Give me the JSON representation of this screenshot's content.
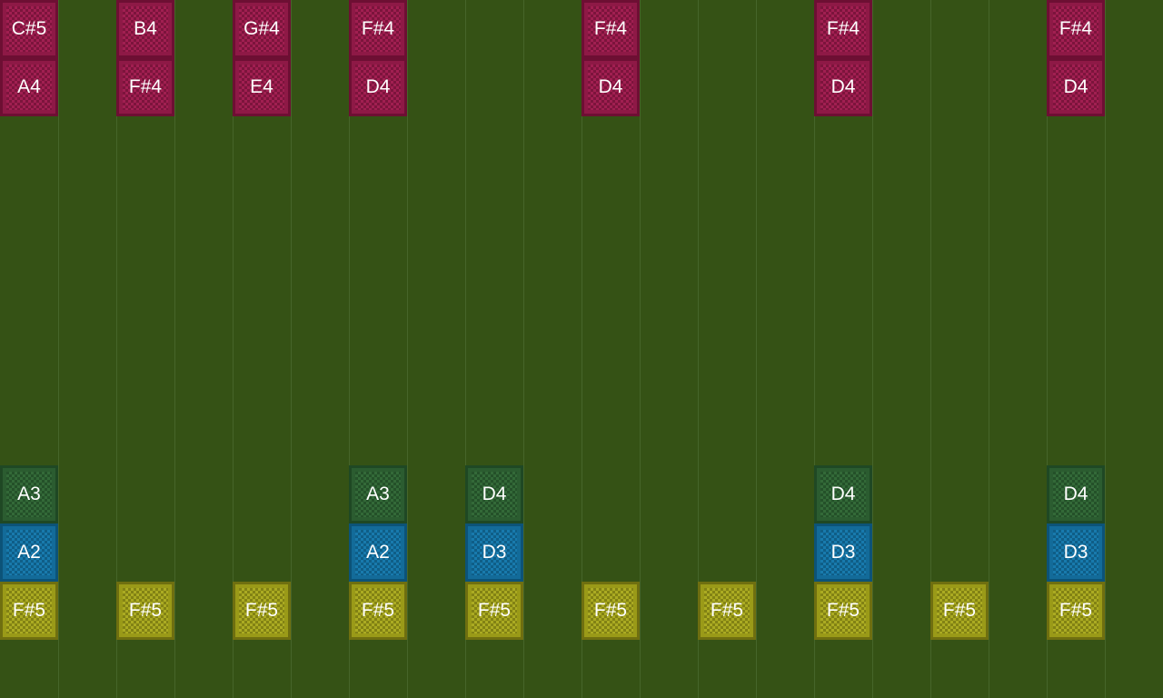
{
  "colors": {
    "background": "#355215",
    "gridline": "#46652a",
    "melody": {
      "base": "#8e1946",
      "dark": "#6d0f33",
      "light": "#b0235a"
    },
    "harmony": {
      "base": "#2b5c30",
      "dark": "#1f4824",
      "light": "#3a743f"
    },
    "bass": {
      "base": "#136b99",
      "dark": "#0c5378",
      "light": "#1c86bd"
    },
    "percussion": {
      "base": "#9a9a18",
      "dark": "#6f6f10",
      "light": "#b8b82a"
    }
  },
  "columns": 20,
  "rows": 12,
  "notes": [
    {
      "col": 0,
      "row": 0,
      "track": "melody",
      "label": "C#5"
    },
    {
      "col": 0,
      "row": 1,
      "track": "melody",
      "label": "A4"
    },
    {
      "col": 2,
      "row": 0,
      "track": "melody",
      "label": "B4"
    },
    {
      "col": 2,
      "row": 1,
      "track": "melody",
      "label": "F#4"
    },
    {
      "col": 4,
      "row": 0,
      "track": "melody",
      "label": "G#4"
    },
    {
      "col": 4,
      "row": 1,
      "track": "melody",
      "label": "E4"
    },
    {
      "col": 6,
      "row": 0,
      "track": "melody",
      "label": "F#4"
    },
    {
      "col": 6,
      "row": 1,
      "track": "melody",
      "label": "D4"
    },
    {
      "col": 10,
      "row": 0,
      "track": "melody",
      "label": "F#4"
    },
    {
      "col": 10,
      "row": 1,
      "track": "melody",
      "label": "D4"
    },
    {
      "col": 14,
      "row": 0,
      "track": "melody",
      "label": "F#4"
    },
    {
      "col": 14,
      "row": 1,
      "track": "melody",
      "label": "D4"
    },
    {
      "col": 18,
      "row": 0,
      "track": "melody",
      "label": "F#4"
    },
    {
      "col": 18,
      "row": 1,
      "track": "melody",
      "label": "D4"
    },
    {
      "col": 0,
      "row": 8,
      "track": "harmony",
      "label": "A3"
    },
    {
      "col": 6,
      "row": 8,
      "track": "harmony",
      "label": "A3"
    },
    {
      "col": 8,
      "row": 8,
      "track": "harmony",
      "label": "D4"
    },
    {
      "col": 14,
      "row": 8,
      "track": "harmony",
      "label": "D4"
    },
    {
      "col": 18,
      "row": 8,
      "track": "harmony",
      "label": "D4"
    },
    {
      "col": 0,
      "row": 9,
      "track": "bass",
      "label": "A2"
    },
    {
      "col": 6,
      "row": 9,
      "track": "bass",
      "label": "A2"
    },
    {
      "col": 8,
      "row": 9,
      "track": "bass",
      "label": "D3"
    },
    {
      "col": 14,
      "row": 9,
      "track": "bass",
      "label": "D3"
    },
    {
      "col": 18,
      "row": 9,
      "track": "bass",
      "label": "D3"
    },
    {
      "col": 0,
      "row": 10,
      "track": "percussion",
      "label": "F#5"
    },
    {
      "col": 2,
      "row": 10,
      "track": "percussion",
      "label": "F#5"
    },
    {
      "col": 4,
      "row": 10,
      "track": "percussion",
      "label": "F#5"
    },
    {
      "col": 6,
      "row": 10,
      "track": "percussion",
      "label": "F#5"
    },
    {
      "col": 8,
      "row": 10,
      "track": "percussion",
      "label": "F#5"
    },
    {
      "col": 10,
      "row": 10,
      "track": "percussion",
      "label": "F#5"
    },
    {
      "col": 12,
      "row": 10,
      "track": "percussion",
      "label": "F#5"
    },
    {
      "col": 14,
      "row": 10,
      "track": "percussion",
      "label": "F#5"
    },
    {
      "col": 16,
      "row": 10,
      "track": "percussion",
      "label": "F#5"
    },
    {
      "col": 18,
      "row": 10,
      "track": "percussion",
      "label": "F#5"
    }
  ]
}
